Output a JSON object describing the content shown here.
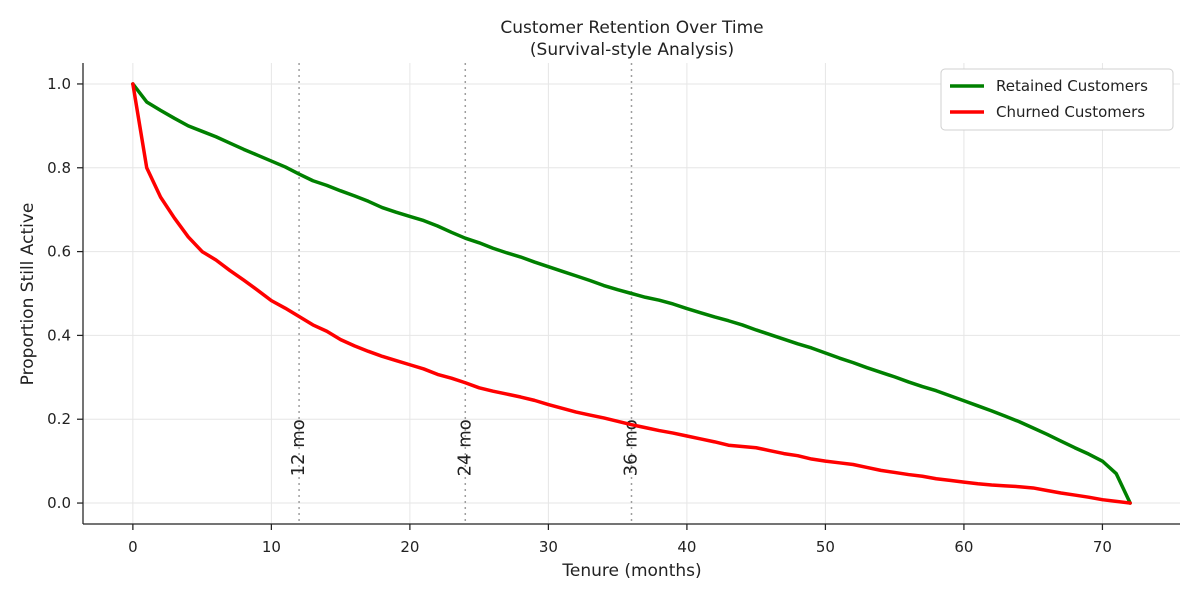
{
  "chart_data": {
    "type": "line",
    "title": "Customer Retention Over Time",
    "subtitle": "(Survival-style Analysis)",
    "xlabel": "Tenure (months)",
    "ylabel": "Proportion Still Active",
    "xlim": [
      -3.6,
      75.6
    ],
    "ylim": [
      -0.05,
      1.05
    ],
    "xticks": [
      0,
      10,
      20,
      30,
      40,
      50,
      60,
      70
    ],
    "xtick_labels": [
      "0",
      "10",
      "20",
      "30",
      "40",
      "50",
      "60",
      "70"
    ],
    "yticks": [
      0.0,
      0.2,
      0.4,
      0.6,
      0.8,
      1.0
    ],
    "ytick_labels": [
      "0.0",
      "0.2",
      "0.4",
      "0.6",
      "0.8",
      "1.0"
    ],
    "grid": true,
    "legend_position": "top-right",
    "reference_lines": [
      {
        "x": 12,
        "label": "12 mo",
        "label_y": 0.2
      },
      {
        "x": 24,
        "label": "24 mo",
        "label_y": 0.2
      },
      {
        "x": 36,
        "label": "36 mo",
        "label_y": 0.2
      }
    ],
    "x": [
      0,
      1,
      2,
      3,
      4,
      5,
      6,
      7,
      8,
      9,
      10,
      11,
      12,
      13,
      14,
      15,
      16,
      17,
      18,
      19,
      20,
      21,
      22,
      23,
      24,
      25,
      26,
      27,
      28,
      29,
      30,
      31,
      32,
      33,
      34,
      35,
      36,
      37,
      38,
      39,
      40,
      41,
      42,
      43,
      44,
      45,
      46,
      47,
      48,
      49,
      50,
      51,
      52,
      53,
      54,
      55,
      56,
      57,
      58,
      59,
      60,
      61,
      62,
      63,
      64,
      65,
      66,
      67,
      68,
      69,
      70,
      71,
      72
    ],
    "series": [
      {
        "name": "Retained Customers",
        "color": "#008000",
        "values": [
          1.0,
          0.957,
          0.937,
          0.918,
          0.9,
          0.887,
          0.874,
          0.859,
          0.844,
          0.83,
          0.816,
          0.802,
          0.785,
          0.769,
          0.758,
          0.745,
          0.733,
          0.72,
          0.705,
          0.694,
          0.684,
          0.674,
          0.661,
          0.646,
          0.632,
          0.621,
          0.608,
          0.597,
          0.587,
          0.575,
          0.564,
          0.553,
          0.542,
          0.531,
          0.519,
          0.509,
          0.5,
          0.491,
          0.484,
          0.475,
          0.464,
          0.454,
          0.444,
          0.435,
          0.425,
          0.413,
          0.402,
          0.391,
          0.38,
          0.37,
          0.358,
          0.346,
          0.335,
          0.323,
          0.312,
          0.301,
          0.289,
          0.278,
          0.268,
          0.256,
          0.244,
          0.232,
          0.22,
          0.207,
          0.194,
          0.179,
          0.164,
          0.148,
          0.132,
          0.117,
          0.1,
          0.07,
          0.0
        ]
      },
      {
        "name": "Churned Customers",
        "color": "#ff0000",
        "values": [
          1.0,
          0.8,
          0.73,
          0.68,
          0.635,
          0.6,
          0.58,
          0.555,
          0.532,
          0.508,
          0.483,
          0.465,
          0.445,
          0.425,
          0.41,
          0.39,
          0.375,
          0.362,
          0.35,
          0.34,
          0.33,
          0.32,
          0.307,
          0.298,
          0.287,
          0.275,
          0.267,
          0.26,
          0.253,
          0.245,
          0.235,
          0.226,
          0.217,
          0.21,
          0.203,
          0.195,
          0.187,
          0.18,
          0.173,
          0.167,
          0.16,
          0.153,
          0.146,
          0.138,
          0.135,
          0.132,
          0.125,
          0.118,
          0.113,
          0.105,
          0.1,
          0.096,
          0.092,
          0.085,
          0.078,
          0.073,
          0.068,
          0.064,
          0.058,
          0.054,
          0.05,
          0.046,
          0.043,
          0.041,
          0.039,
          0.036,
          0.03,
          0.024,
          0.019,
          0.014,
          0.008,
          0.004,
          0.0
        ]
      }
    ]
  }
}
